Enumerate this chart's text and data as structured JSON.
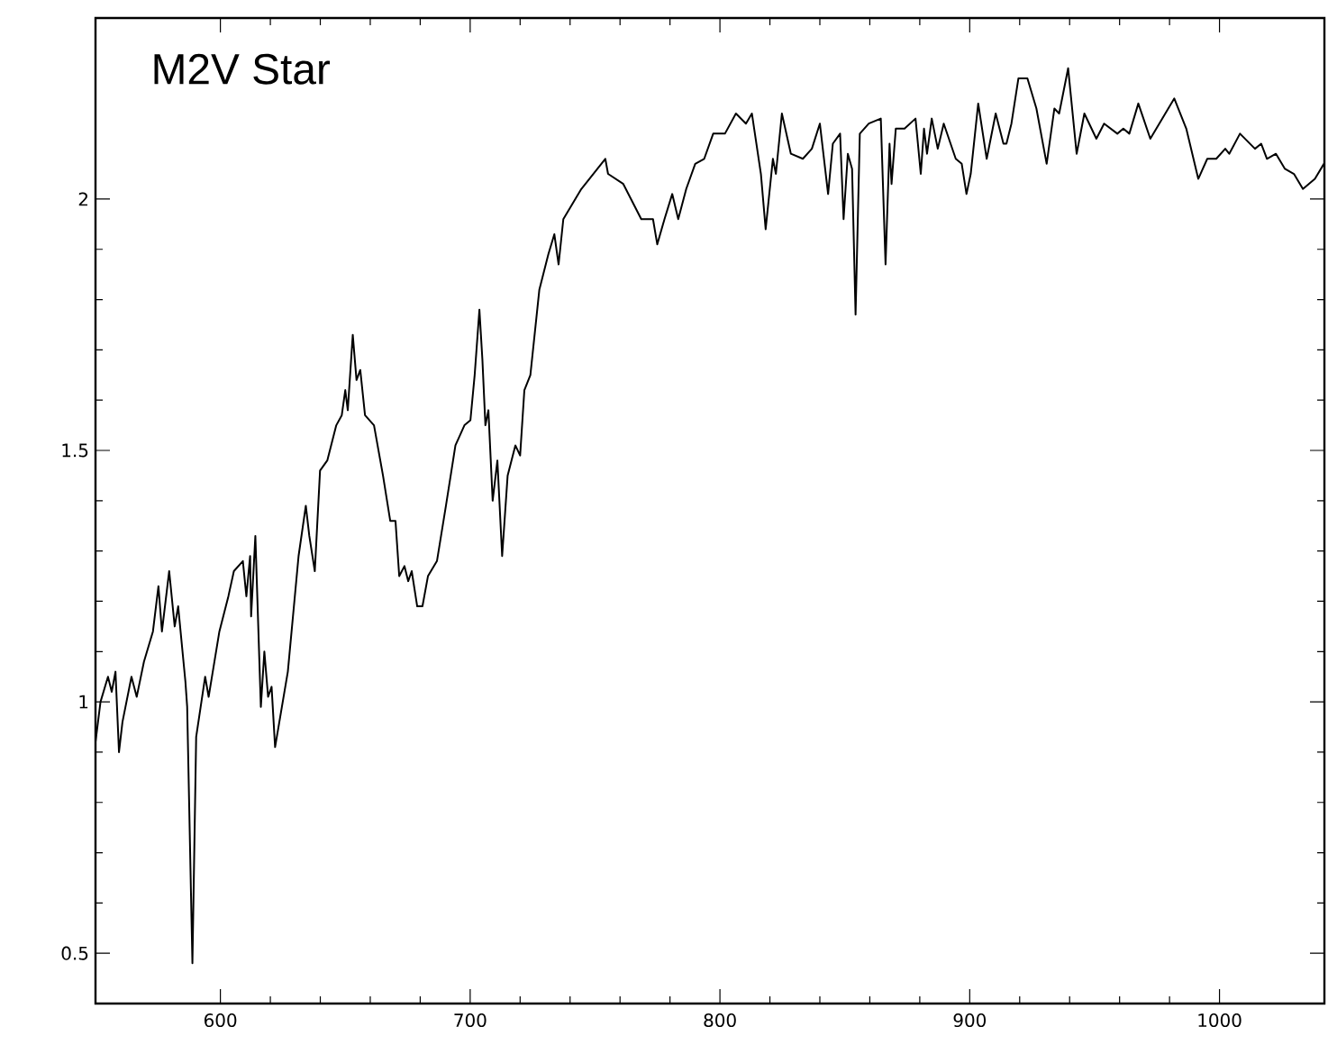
{
  "chart_data": {
    "type": "line",
    "title": "M2V Star",
    "xlim": [
      550,
      1042
    ],
    "ylim": [
      0.4,
      2.36
    ],
    "xticks": [
      600,
      700,
      800,
      900,
      1000
    ],
    "yticks": [
      0.5,
      1,
      1.5,
      2
    ],
    "marker": "none",
    "line_style": "solid",
    "series": [
      {
        "color": "#000000",
        "x": [
          550,
          552,
          555,
          556.5,
          558,
          559.4,
          560.8,
          564.4,
          566.5,
          569.4,
          573.0,
          575.2,
          576.6,
          579.5,
          581.7,
          583.1,
          586.0,
          586.7,
          588.8,
          590.3,
          593.9,
          595.3,
          599.6,
          603.2,
          605.4,
          609.0,
          610.4,
          611.9,
          612.3,
          614.0,
          616.2,
          617.6,
          619.1,
          620.5,
          621.9,
          627.0,
          631.3,
          634.2,
          635.6,
          637.8,
          639.9,
          642.8,
          646.4,
          648.6,
          650,
          651,
          653,
          654.5,
          656,
          657.9,
          661.5,
          665.1,
          668.0,
          670.1,
          671.6,
          673.7,
          675.2,
          676.6,
          678.8,
          680.9,
          683.1,
          686.7,
          690.3,
          694.1,
          697.7,
          700.1,
          701.8,
          703.7,
          704.9,
          706.1,
          707.3,
          709.0,
          710.9,
          712.8,
          715.0,
          718.1,
          720.0,
          721.7,
          724.1,
          727.7,
          731.3,
          733.7,
          735.4,
          737.3,
          740.9,
          744.5,
          749.3,
          754.1,
          755.2,
          761.3,
          768.5,
          773.2,
          774.9,
          777.8,
          780.9,
          783.3,
          786.5,
          790.1,
          793.7,
          797.3,
          802.0,
          806.4,
          810.4,
          812.8,
          816.4,
          818.3,
          821.2,
          822.4,
          824.8,
          828.4,
          833.2,
          836.8,
          840.0,
          843.3,
          845.2,
          848.1,
          849.5,
          851.2,
          852.9,
          854.3,
          856.0,
          859.6,
          864.4,
          866.3,
          867.9,
          868.7,
          870.4,
          873.9,
          878.3,
          880.4,
          881.7,
          882.9,
          884.8,
          887.2,
          889.6,
          894.4,
          896.8,
          898.7,
          900.4,
          903.4,
          906.8,
          910.4,
          913.5,
          914.7,
          916.7,
          919.5,
          923.1,
          926.7,
          930.8,
          933.9,
          935.8,
          939.4,
          942.8,
          945.9,
          950.7,
          953.8,
          959.1,
          961.5,
          963.9,
          967.5,
          972.3,
          977.1,
          981.9,
          986.7,
          991.5,
          995.1,
          998.7,
          1002.3,
          1003.9,
          1008.2,
          1014.2,
          1016.7,
          1019.0,
          1022.6,
          1026.2,
          1029.8,
          1033.4,
          1038.2,
          1041.8
        ],
        "values": [
          0.92,
          1.0,
          1.05,
          1.02,
          1.06,
          0.9,
          0.96,
          1.05,
          1.01,
          1.08,
          1.14,
          1.23,
          1.14,
          1.26,
          1.15,
          1.19,
          1.04,
          0.99,
          0.48,
          0.93,
          1.05,
          1.01,
          1.14,
          1.21,
          1.26,
          1.28,
          1.21,
          1.29,
          1.17,
          1.33,
          0.99,
          1.1,
          1.01,
          1.03,
          0.91,
          1.06,
          1.29,
          1.39,
          1.33,
          1.26,
          1.46,
          1.48,
          1.55,
          1.57,
          1.62,
          1.58,
          1.73,
          1.64,
          1.66,
          1.57,
          1.55,
          1.45,
          1.36,
          1.36,
          1.25,
          1.27,
          1.24,
          1.26,
          1.19,
          1.19,
          1.25,
          1.28,
          1.39,
          1.51,
          1.55,
          1.56,
          1.65,
          1.78,
          1.68,
          1.55,
          1.58,
          1.4,
          1.48,
          1.29,
          1.45,
          1.51,
          1.49,
          1.62,
          1.65,
          1.82,
          1.89,
          1.93,
          1.87,
          1.96,
          1.99,
          2.02,
          2.05,
          2.08,
          2.05,
          2.03,
          1.96,
          1.96,
          1.91,
          1.96,
          2.01,
          1.96,
          2.02,
          2.07,
          2.08,
          2.13,
          2.13,
          2.17,
          2.15,
          2.17,
          2.05,
          1.94,
          2.08,
          2.05,
          2.17,
          2.09,
          2.08,
          2.1,
          2.15,
          2.01,
          2.11,
          2.13,
          1.96,
          2.09,
          2.06,
          1.77,
          2.13,
          2.15,
          2.16,
          1.87,
          2.11,
          2.03,
          2.14,
          2.14,
          2.16,
          2.05,
          2.14,
          2.09,
          2.16,
          2.1,
          2.15,
          2.08,
          2.07,
          2.01,
          2.05,
          2.19,
          2.08,
          2.17,
          2.11,
          2.11,
          2.15,
          2.24,
          2.24,
          2.18,
          2.07,
          2.18,
          2.17,
          2.26,
          2.09,
          2.17,
          2.12,
          2.15,
          2.13,
          2.14,
          2.13,
          2.19,
          2.12,
          2.16,
          2.2,
          2.14,
          2.04,
          2.08,
          2.08,
          2.1,
          2.09,
          2.13,
          2.1,
          2.11,
          2.08,
          2.09,
          2.06,
          2.05,
          2.02,
          2.04,
          2.07
        ]
      }
    ]
  }
}
